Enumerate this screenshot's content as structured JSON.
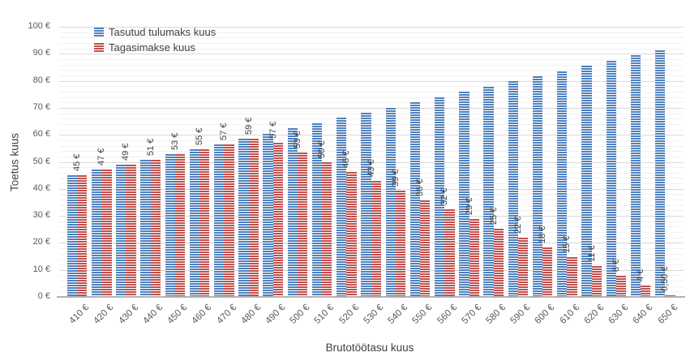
{
  "chart_data": {
    "type": "bar",
    "title": "",
    "xlabel": "Brutotöötasu kuus",
    "ylabel": "Toetus kuus",
    "categories": [
      "410 €",
      "420 €",
      "430 €",
      "440 €",
      "450 €",
      "460 €",
      "470 €",
      "480 €",
      "490 €",
      "500 €",
      "510 €",
      "520 €",
      "530 €",
      "540 €",
      "550 €",
      "560 €",
      "570 €",
      "580 €",
      "590 €",
      "600 €",
      "610 €",
      "620 €",
      "630 €",
      "640 €",
      "650 €"
    ],
    "series": [
      {
        "name": "Tasutud tulumaks kuus",
        "color": "#4f81bd",
        "values": [
          45,
          47,
          48.9,
          50.8,
          52.8,
          54.7,
          56.6,
          58.5,
          60.5,
          62.4,
          64.3,
          66.3,
          68.2,
          70.1,
          72,
          74,
          75.9,
          77.8,
          79.8,
          81.7,
          83.6,
          85.5,
          87.5,
          89.4,
          91.3
        ]
      },
      {
        "name": "Tagasimakse kuus",
        "color": "#c0504d",
        "values": [
          45,
          47,
          48.9,
          50.8,
          52.8,
          54.7,
          56.6,
          58.5,
          57,
          53.4,
          49.9,
          46.3,
          42.8,
          39.3,
          35.8,
          32.3,
          28.8,
          25.3,
          21.8,
          18.3,
          14.8,
          11.3,
          7.8,
          4.3,
          0.5
        ],
        "data_labels": [
          "45 €",
          "47 €",
          "49 €",
          "51 €",
          "53 €",
          "55 €",
          "57 €",
          "59 €",
          "57 €",
          "53 €",
          "50 €",
          "46 €",
          "43 €",
          "39 €",
          "36 €",
          "32 €",
          "29 €",
          "25 €",
          "22 €",
          "18 €",
          "15 €",
          "11 €",
          "8 €",
          "4 €",
          "0,50 €"
        ]
      }
    ],
    "ylim": [
      0,
      100
    ],
    "yticks": [
      0,
      10,
      20,
      30,
      40,
      50,
      60,
      70,
      80,
      90,
      100
    ],
    "ytick_suffix": " €",
    "minor_grid_step": 2,
    "major_grid_step": 10,
    "grid": true,
    "legend_position": "top-inside-left",
    "colors": {
      "grid_major": "#d9d9d9",
      "grid_minor": "#f2f2f2",
      "axis_line": "#b3b3b3",
      "tick_text": "#595959",
      "title_text": "#404040",
      "label_text": "#404040"
    }
  }
}
